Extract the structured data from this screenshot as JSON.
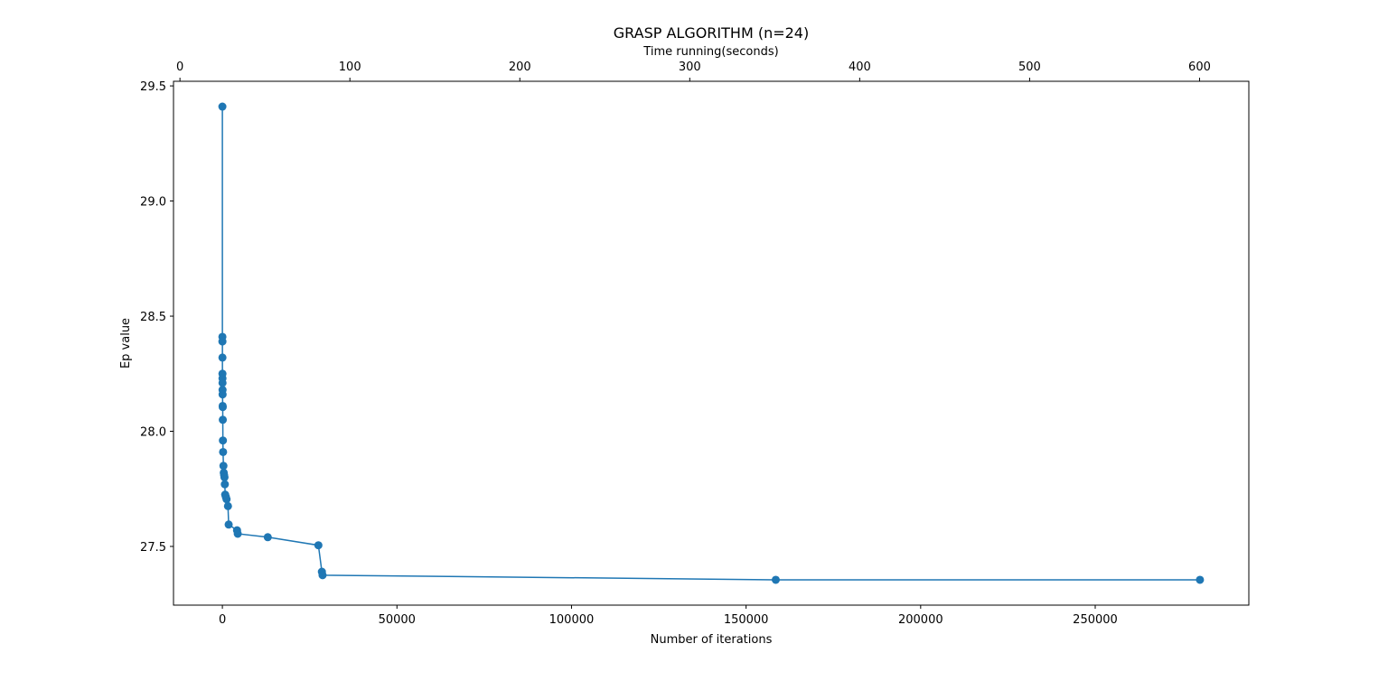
{
  "chart_data": {
    "type": "line",
    "title": "GRASP ALGORITHM (n=24)",
    "xlabel": "Number of iterations",
    "ylabel": "Ep value",
    "x2label": "Time running(seconds)",
    "xlim": [
      -14000,
      294000
    ],
    "ylim": [
      27.245,
      29.52
    ],
    "x2lim": [
      -3.8,
      629
    ],
    "xticks": [
      0,
      50000,
      100000,
      150000,
      200000,
      250000
    ],
    "x2ticks": [
      0,
      100,
      200,
      300,
      400,
      500,
      600
    ],
    "yticks": [
      27.5,
      28.0,
      28.5,
      29.0,
      29.5
    ],
    "ytick_labels": [
      "27.5",
      "28.0",
      "28.5",
      "29.0",
      "29.5"
    ],
    "grid": false,
    "marker": "circle",
    "color": "#1f77b4",
    "series": [
      {
        "x": [
          1,
          5,
          10,
          15,
          20,
          30,
          40,
          50,
          60,
          80,
          100,
          120,
          150,
          200,
          300,
          400,
          500,
          600,
          700,
          800,
          1000,
          1200,
          1600,
          1800,
          4200,
          4400,
          13000,
          27500,
          28500,
          28700,
          158500,
          280000
        ],
        "y": [
          29.41,
          28.41,
          28.39,
          28.32,
          28.25,
          28.23,
          28.21,
          28.18,
          28.16,
          28.11,
          28.105,
          28.05,
          27.96,
          27.91,
          27.85,
          27.82,
          27.81,
          27.8,
          27.77,
          27.725,
          27.715,
          27.705,
          27.675,
          27.595,
          27.57,
          27.555,
          27.54,
          27.505,
          27.39,
          27.375,
          27.355,
          27.355
        ]
      }
    ]
  }
}
